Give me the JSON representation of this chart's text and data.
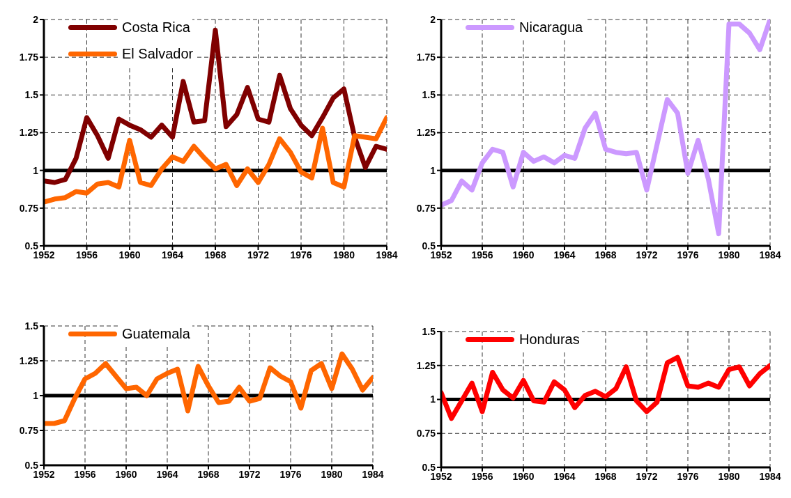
{
  "chart_data": [
    {
      "type": "line",
      "x": [
        1952,
        1953,
        1954,
        1955,
        1956,
        1957,
        1958,
        1959,
        1960,
        1961,
        1962,
        1963,
        1964,
        1965,
        1966,
        1967,
        1968,
        1969,
        1970,
        1971,
        1972,
        1973,
        1974,
        1975,
        1976,
        1977,
        1978,
        1979,
        1980,
        1981,
        1982,
        1983,
        1984
      ],
      "series": [
        {
          "name": "Costa Rica",
          "color": "#800000",
          "values": [
            0.93,
            0.92,
            0.94,
            1.08,
            1.35,
            1.23,
            1.08,
            1.34,
            1.3,
            1.27,
            1.22,
            1.3,
            1.22,
            1.59,
            1.32,
            1.33,
            1.93,
            1.29,
            1.37,
            1.55,
            1.34,
            1.32,
            1.63,
            1.41,
            1.3,
            1.23,
            1.35,
            1.48,
            1.54,
            1.22,
            1.02,
            1.16,
            1.14
          ]
        },
        {
          "name": "El Salvador",
          "color": "#ff6600",
          "values": [
            0.79,
            0.81,
            0.82,
            0.86,
            0.85,
            0.91,
            0.92,
            0.89,
            1.2,
            0.92,
            0.9,
            1.01,
            1.09,
            1.06,
            1.16,
            1.08,
            1.01,
            1.04,
            0.9,
            1.01,
            0.92,
            1.04,
            1.21,
            1.12,
            0.99,
            0.95,
            1.28,
            0.92,
            0.89,
            1.23,
            1.22,
            1.21,
            1.35
          ]
        }
      ],
      "xlim": [
        1952,
        1984
      ],
      "xticks": [
        1952,
        1956,
        1960,
        1964,
        1968,
        1972,
        1976,
        1980,
        1984
      ],
      "ylim": [
        0.5,
        2
      ],
      "yticks": [
        0.5,
        0.75,
        1,
        1.25,
        1.5,
        1.75,
        2
      ],
      "grid": true,
      "legend": "top left",
      "marker": "none",
      "line_style": "solid",
      "ref_lines": [
        {
          "axis": "y",
          "value": 1,
          "color": "#000000"
        }
      ]
    },
    {
      "type": "line",
      "x": [
        1952,
        1953,
        1954,
        1955,
        1956,
        1957,
        1958,
        1959,
        1960,
        1961,
        1962,
        1963,
        1964,
        1965,
        1966,
        1967,
        1968,
        1969,
        1970,
        1971,
        1972,
        1973,
        1974,
        1975,
        1976,
        1977,
        1978,
        1979,
        1980,
        1981,
        1982,
        1983,
        1984
      ],
      "series": [
        {
          "name": "Nicaragua",
          "color": "#cc99ff",
          "values": [
            0.77,
            0.8,
            0.93,
            0.87,
            1.05,
            1.14,
            1.12,
            0.89,
            1.12,
            1.06,
            1.09,
            1.05,
            1.1,
            1.08,
            1.28,
            1.38,
            1.14,
            1.12,
            1.11,
            1.12,
            0.87,
            1.17,
            1.47,
            1.38,
            0.98,
            1.2,
            0.94,
            0.58,
            1.97,
            1.97,
            1.91,
            1.8,
            2.0
          ]
        }
      ],
      "xlim": [
        1952,
        1984
      ],
      "xticks": [
        1952,
        1956,
        1960,
        1964,
        1968,
        1972,
        1976,
        1980,
        1984
      ],
      "ylim": [
        0.5,
        2
      ],
      "yticks": [
        0.5,
        0.75,
        1,
        1.25,
        1.5,
        1.75,
        2
      ],
      "grid": true,
      "legend": "top left",
      "marker": "none",
      "line_style": "solid",
      "ref_lines": [
        {
          "axis": "y",
          "value": 1,
          "color": "#000000"
        }
      ]
    },
    {
      "type": "line",
      "x": [
        1952,
        1953,
        1954,
        1955,
        1956,
        1957,
        1958,
        1959,
        1960,
        1961,
        1962,
        1963,
        1964,
        1965,
        1966,
        1967,
        1968,
        1969,
        1970,
        1971,
        1972,
        1973,
        1974,
        1975,
        1976,
        1977,
        1978,
        1979,
        1980,
        1981,
        1982,
        1983,
        1984
      ],
      "series": [
        {
          "name": "Guatemala",
          "color": "#ff6600",
          "values": [
            0.8,
            0.8,
            0.82,
            0.98,
            1.12,
            1.16,
            1.23,
            1.14,
            1.05,
            1.06,
            1.0,
            1.12,
            1.16,
            1.19,
            0.89,
            1.21,
            1.07,
            0.95,
            0.96,
            1.06,
            0.96,
            0.98,
            1.2,
            1.14,
            1.1,
            0.91,
            1.18,
            1.23,
            1.05,
            1.3,
            1.19,
            1.04,
            1.13
          ]
        }
      ],
      "xlim": [
        1952,
        1984
      ],
      "xticks": [
        1952,
        1956,
        1960,
        1964,
        1968,
        1972,
        1976,
        1980,
        1984
      ],
      "ylim": [
        0.5,
        1.5
      ],
      "yticks": [
        0.5,
        0.75,
        1,
        1.25,
        1.5
      ],
      "grid": true,
      "legend": "top left",
      "marker": "none",
      "line_style": "solid",
      "ref_lines": [
        {
          "axis": "y",
          "value": 1,
          "color": "#000000"
        }
      ]
    },
    {
      "type": "line",
      "x": [
        1952,
        1953,
        1954,
        1955,
        1956,
        1957,
        1958,
        1959,
        1960,
        1961,
        1962,
        1963,
        1964,
        1965,
        1966,
        1967,
        1968,
        1969,
        1970,
        1971,
        1972,
        1973,
        1974,
        1975,
        1976,
        1977,
        1978,
        1979,
        1980,
        1981,
        1982,
        1983,
        1984
      ],
      "series": [
        {
          "name": "Honduras",
          "color": "#ff0000",
          "values": [
            1.05,
            0.86,
            0.99,
            1.12,
            0.91,
            1.2,
            1.07,
            1.01,
            1.14,
            0.99,
            0.98,
            1.13,
            1.07,
            0.94,
            1.03,
            1.06,
            1.02,
            1.08,
            1.24,
            0.99,
            0.91,
            0.98,
            1.27,
            1.31,
            1.1,
            1.09,
            1.12,
            1.09,
            1.22,
            1.24,
            1.1,
            1.19,
            1.25
          ]
        }
      ],
      "xlim": [
        1952,
        1984
      ],
      "xticks": [
        1952,
        1956,
        1960,
        1964,
        1968,
        1972,
        1976,
        1980,
        1984
      ],
      "ylim": [
        0.5,
        1.5
      ],
      "yticks": [
        0.5,
        0.75,
        1,
        1.25,
        1.5
      ],
      "grid": true,
      "legend": "top left",
      "marker": "none",
      "line_style": "solid",
      "ref_lines": [
        {
          "axis": "y",
          "value": 1,
          "color": "#000000"
        }
      ]
    }
  ]
}
